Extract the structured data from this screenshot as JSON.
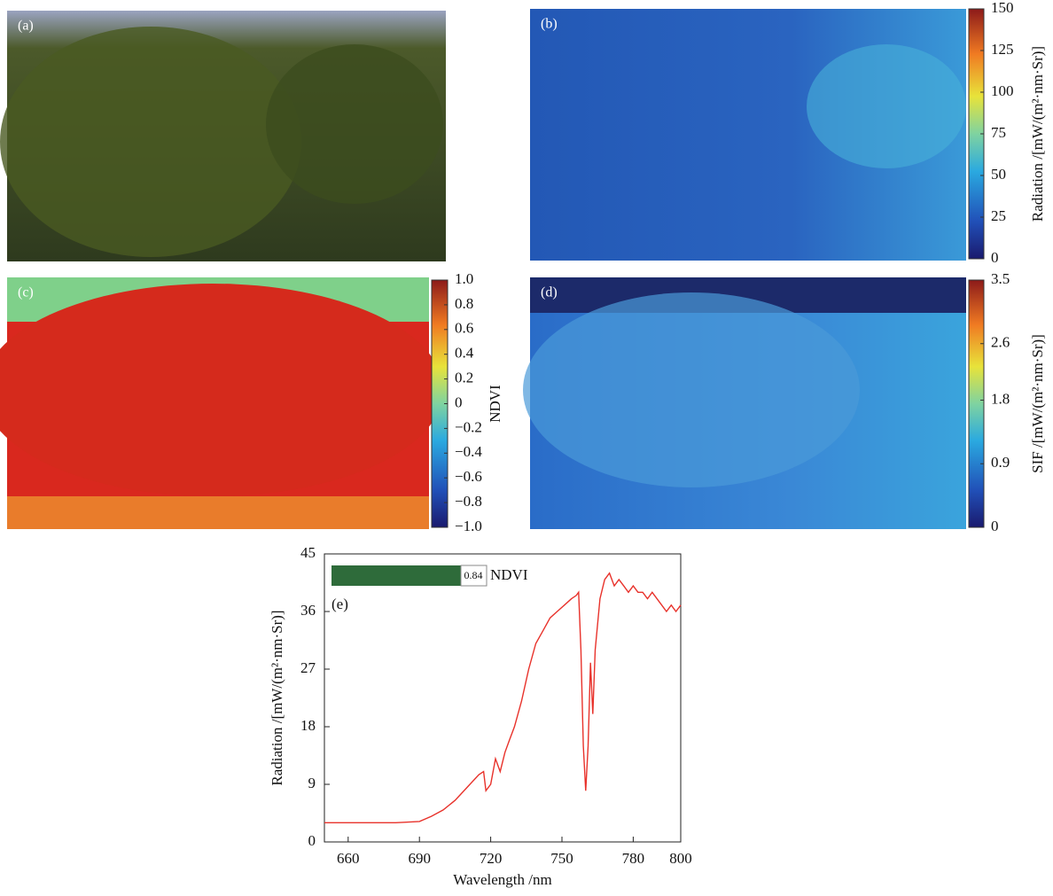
{
  "chart_data": [
    {
      "type": "image",
      "panel_label": "(a)"
    },
    {
      "type": "heatmap",
      "panel_label": "(b)",
      "colorbar_label": "Radiation /[mW/(m²·nm·Sr)]",
      "clim": [
        0,
        150
      ],
      "cticks": [
        0,
        25,
        50,
        75,
        100,
        125,
        150
      ]
    },
    {
      "type": "heatmap",
      "panel_label": "(c)",
      "colorbar_label": "NDVI",
      "clim": [
        -1,
        1
      ],
      "cticks": [
        {
          "value": -1,
          "label": "−1.0"
        },
        {
          "value": -0.8,
          "label": "−0.8"
        },
        {
          "value": -0.6,
          "label": "−0.6"
        },
        {
          "value": -0.4,
          "label": "−0.4"
        },
        {
          "value": -0.2,
          "label": "−0.2"
        },
        0,
        0.2,
        0.4,
        0.6,
        0.8,
        {
          "value": 1,
          "label": "1.0"
        }
      ]
    },
    {
      "type": "heatmap",
      "panel_label": "(d)",
      "colorbar_label": "SIF /[mW/(m²·nm·Sr)]",
      "clim": [
        0,
        3.5
      ],
      "cticks": [
        0,
        0.9,
        1.8,
        2.6,
        3.5
      ]
    },
    {
      "type": "line",
      "panel_label": "(e)",
      "x_label": "Wavelength /nm",
      "y_label": "Radiation /[mW/(m²·nm·Sr)]",
      "xlim": [
        650,
        800
      ],
      "ylim": [
        0,
        45
      ],
      "xticks": [
        660,
        690,
        720,
        750,
        780,
        800
      ],
      "yticks": [
        0,
        9,
        18,
        27,
        36,
        45
      ],
      "color": "#e8322b",
      "legend_value": 0.84,
      "legend_label": "NDVI",
      "x": [
        650,
        660,
        670,
        680,
        690,
        695,
        700,
        705,
        710,
        715,
        717,
        718,
        720,
        722,
        724,
        726,
        728,
        730,
        733,
        736,
        739,
        742,
        745,
        748,
        751,
        754,
        756,
        757,
        758,
        759,
        760,
        761,
        762,
        763,
        764,
        766,
        768,
        770,
        772,
        774,
        776,
        778,
        780,
        782,
        784,
        786,
        788,
        790,
        792,
        794,
        796,
        798,
        800
      ],
      "values": [
        3,
        3,
        3,
        3,
        3.2,
        4,
        5,
        6.5,
        8.5,
        10.5,
        11,
        8,
        9,
        13,
        11,
        14,
        16,
        18,
        22,
        27,
        31,
        33,
        35,
        36,
        37,
        38,
        38.5,
        39,
        30,
        15,
        8,
        15,
        28,
        20,
        30,
        38,
        41,
        42,
        40,
        41,
        40,
        39,
        40,
        39,
        39,
        38,
        39,
        38,
        37,
        36,
        37,
        36,
        37
      ]
    }
  ]
}
